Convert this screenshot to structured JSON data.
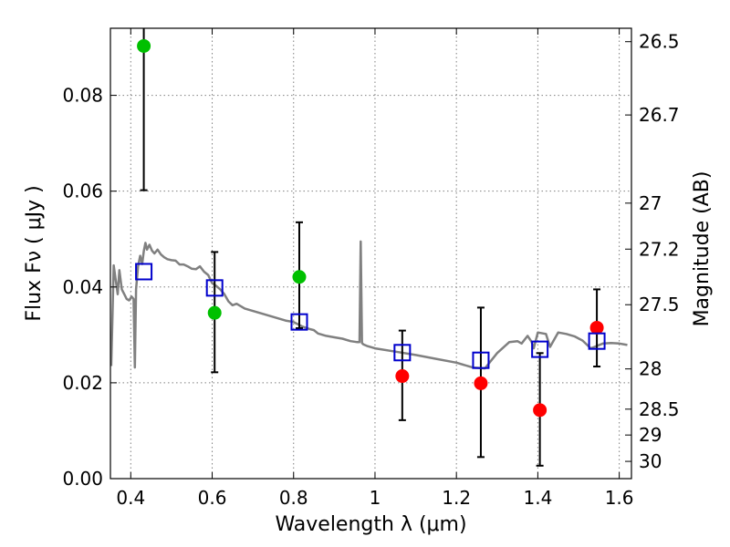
{
  "chart_data": {
    "type": "scatter",
    "xlabel": "Wavelength  λ (μm)",
    "ylabel": "Flux  Fν  ( μJy )",
    "y2label": "Magnitude (AB)",
    "xlim": [
      0.35,
      1.63
    ],
    "ylim": [
      0.0,
      0.094
    ],
    "grid": true,
    "x_ticks": [
      0.4,
      0.6,
      0.8,
      1.0,
      1.2,
      1.4,
      1.6
    ],
    "x_tick_labels": [
      "0.4",
      "0.6",
      "0.8",
      "1",
      "1.2",
      "1.4",
      "1.6"
    ],
    "y_ticks": [
      0.0,
      0.02,
      0.04,
      0.06,
      0.08
    ],
    "y_tick_labels": [
      "0.00",
      "0.02",
      "0.04",
      "0.06",
      "0.08"
    ],
    "y2_ticks": [
      {
        "label": "26.5",
        "flux": 0.0912
      },
      {
        "label": "26.7",
        "flux": 0.0759
      },
      {
        "label": "27",
        "flux": 0.0575
      },
      {
        "label": "27.2",
        "flux": 0.0479
      },
      {
        "label": "27.5",
        "flux": 0.0363
      },
      {
        "label": "28",
        "flux": 0.0229
      },
      {
        "label": "28.5",
        "flux": 0.0145
      },
      {
        "label": "29",
        "flux": 0.0091
      },
      {
        "label": "30",
        "flux": 0.0036
      }
    ],
    "series": [
      {
        "marker": "circle",
        "color": "#00c000",
        "points": [
          {
            "x": 0.432,
            "y": 0.0903,
            "err_low": 0.0602,
            "err_high": 0.096
          },
          {
            "x": 0.606,
            "y": 0.0346,
            "err_low": 0.0222,
            "err_high": 0.0473
          },
          {
            "x": 0.814,
            "y": 0.0421,
            "err_low": 0.0314,
            "err_high": 0.0535
          }
        ]
      },
      {
        "marker": "circle",
        "color": "#ff0000",
        "points": [
          {
            "x": 1.067,
            "y": 0.0214,
            "err_low": 0.0122,
            "err_high": 0.0309
          },
          {
            "x": 1.26,
            "y": 0.0199,
            "err_low": 0.0045,
            "err_high": 0.0357
          },
          {
            "x": 1.405,
            "y": 0.0143,
            "err_low": 0.0027,
            "err_high": 0.0262
          },
          {
            "x": 1.545,
            "y": 0.0315,
            "err_low": 0.0234,
            "err_high": 0.0395
          }
        ]
      },
      {
        "marker": "square",
        "color": "#0000cc",
        "points": [
          {
            "x": 0.432,
            "y": 0.0432
          },
          {
            "x": 0.606,
            "y": 0.0398
          },
          {
            "x": 0.814,
            "y": 0.0327
          },
          {
            "x": 1.067,
            "y": 0.0263
          },
          {
            "x": 1.26,
            "y": 0.0247
          },
          {
            "x": 1.405,
            "y": 0.027
          },
          {
            "x": 1.545,
            "y": 0.0287
          }
        ]
      },
      {
        "marker": "line",
        "color": "#808080",
        "x": [
          0.352,
          0.358,
          0.363,
          0.368,
          0.372,
          0.378,
          0.384,
          0.39,
          0.396,
          0.402,
          0.407,
          0.41,
          0.413,
          0.418,
          0.423,
          0.428,
          0.432,
          0.436,
          0.44,
          0.446,
          0.452,
          0.458,
          0.466,
          0.474,
          0.482,
          0.49,
          0.5,
          0.51,
          0.52,
          0.53,
          0.54,
          0.55,
          0.56,
          0.57,
          0.58,
          0.59,
          0.6,
          0.61,
          0.62,
          0.63,
          0.64,
          0.65,
          0.66,
          0.68,
          0.7,
          0.72,
          0.74,
          0.76,
          0.78,
          0.8,
          0.82,
          0.84,
          0.85,
          0.86,
          0.88,
          0.9,
          0.92,
          0.94,
          0.955,
          0.962,
          0.965,
          0.968,
          0.972,
          0.98,
          1.0,
          1.05,
          1.1,
          1.15,
          1.2,
          1.24,
          1.27,
          1.3,
          1.33,
          1.35,
          1.36,
          1.375,
          1.385,
          1.39,
          1.4,
          1.42,
          1.43,
          1.45,
          1.47,
          1.49,
          1.51,
          1.53,
          1.56,
          1.58,
          1.6,
          1.62
        ],
        "y": [
          0.0235,
          0.0445,
          0.0415,
          0.0385,
          0.0435,
          0.0395,
          0.0385,
          0.0375,
          0.0372,
          0.038,
          0.0375,
          0.0232,
          0.0395,
          0.0443,
          0.0465,
          0.0448,
          0.0475,
          0.0492,
          0.0478,
          0.0488,
          0.0476,
          0.047,
          0.0478,
          0.0468,
          0.0462,
          0.0458,
          0.0456,
          0.0455,
          0.0447,
          0.0447,
          0.0443,
          0.0438,
          0.0437,
          0.0443,
          0.0432,
          0.0425,
          0.0408,
          0.0402,
          0.0395,
          0.0385,
          0.037,
          0.0362,
          0.0365,
          0.0355,
          0.035,
          0.0345,
          0.034,
          0.0335,
          0.033,
          0.0327,
          0.0318,
          0.0312,
          0.031,
          0.0303,
          0.0298,
          0.0295,
          0.0292,
          0.0287,
          0.0285,
          0.0285,
          0.0495,
          0.0283,
          0.028,
          0.0277,
          0.0272,
          0.0265,
          0.0258,
          0.025,
          0.0242,
          0.0232,
          0.023,
          0.0262,
          0.0285,
          0.0287,
          0.0282,
          0.0298,
          0.0285,
          0.0272,
          0.0305,
          0.0302,
          0.0275,
          0.0305,
          0.0302,
          0.0297,
          0.0288,
          0.0272,
          0.0282,
          0.0283,
          0.0282,
          0.0279
        ]
      }
    ]
  }
}
